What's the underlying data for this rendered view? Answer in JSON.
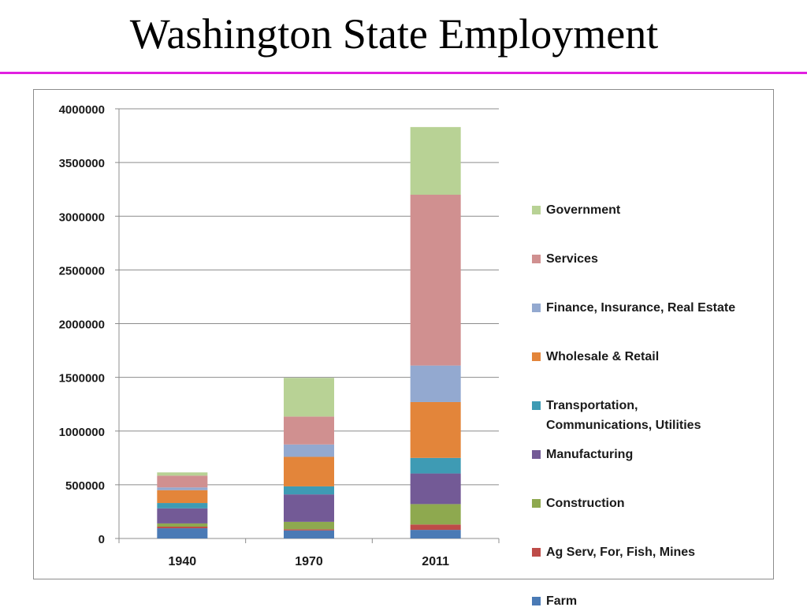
{
  "page": {
    "title": "Washington State Employment",
    "rule_color": "#e020e0"
  },
  "chart_data": {
    "type": "bar",
    "stacked": true,
    "title": "",
    "xlabel": "",
    "ylabel": "",
    "ylim": [
      0,
      4000000
    ],
    "y_ticks": [
      "0",
      "500000",
      "1000000",
      "1500000",
      "2000000",
      "2500000",
      "3000000",
      "3500000",
      "4000000"
    ],
    "grid": true,
    "legend_position": "right",
    "categories": [
      "1940",
      "1970",
      "2011"
    ],
    "series": [
      {
        "name": "Farm",
        "color": "#4a7ab5",
        "values": [
          95000,
          75000,
          80000
        ]
      },
      {
        "name": "Ag Serv, For, Fish, Mines",
        "color": "#be4b48",
        "values": [
          15000,
          10000,
          50000
        ]
      },
      {
        "name": "Construction",
        "color": "#8ea94f",
        "values": [
          30000,
          70000,
          190000
        ]
      },
      {
        "name": "Manufacturing",
        "color": "#735a96",
        "values": [
          140000,
          255000,
          285000
        ]
      },
      {
        "name": "Transportation,\nCommunications, Utilities",
        "color": "#3e9bb4",
        "values": [
          50000,
          75000,
          145000
        ]
      },
      {
        "name": "Wholesale & Retail",
        "color": "#e3853a",
        "values": [
          120000,
          275000,
          520000
        ]
      },
      {
        "name": "Finance, Insurance, Real Estate",
        "color": "#93a9d0",
        "values": [
          25000,
          115000,
          340000
        ]
      },
      {
        "name": "Services",
        "color": "#d09090",
        "values": [
          110000,
          260000,
          1590000
        ]
      },
      {
        "name": "Government",
        "color": "#b8d295",
        "values": [
          30000,
          360000,
          630000
        ]
      }
    ],
    "legend_order": [
      "Government",
      "Services",
      "Finance, Insurance, Real Estate",
      "Wholesale & Retail",
      "Transportation,\nCommunications, Utilities",
      "Manufacturing",
      "Construction",
      "Ag Serv, For, Fish, Mines",
      "Farm"
    ]
  }
}
